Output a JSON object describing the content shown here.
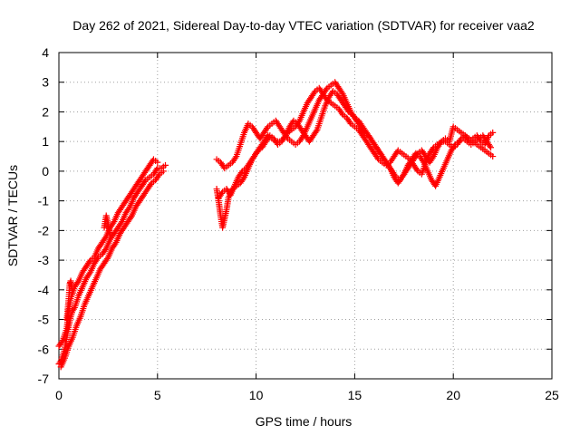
{
  "chart_data": {
    "type": "scatter",
    "title": "Day 262 of 2021, Sidereal Day-to-day VTEC variation (SDTVAR) for receiver vaa2",
    "xlabel": "GPS time / hours",
    "ylabel": "SDTVAR / TECUs",
    "xlim": [
      0,
      25
    ],
    "ylim": [
      -7,
      4
    ],
    "x_ticks": [
      0,
      5,
      10,
      15,
      20,
      25
    ],
    "y_ticks": [
      -7,
      -6,
      -5,
      -4,
      -3,
      -2,
      -1,
      0,
      1,
      2,
      3,
      4
    ],
    "grid": true,
    "marker": "plus",
    "color": "#ff0000",
    "series": [
      {
        "x": [
          0.0,
          0.1,
          0.2,
          0.3,
          0.4,
          0.5,
          0.6,
          0.7,
          0.8,
          0.9,
          1.0,
          1.2,
          1.4,
          1.6,
          1.8,
          2.0,
          2.2,
          2.4,
          2.6,
          2.8,
          3.0,
          3.2,
          3.4,
          3.6,
          3.8,
          4.0,
          4.2,
          4.4,
          4.6,
          4.8,
          5.0,
          5.2,
          5.4
        ],
        "y": [
          -6.5,
          -6.4,
          -6.2,
          -6.0,
          -5.6,
          -5.2,
          -4.9,
          -4.7,
          -4.6,
          -4.4,
          -4.2,
          -3.9,
          -3.6,
          -3.4,
          -3.1,
          -2.9,
          -2.8,
          -2.6,
          -2.3,
          -2.1,
          -1.9,
          -1.7,
          -1.4,
          -1.2,
          -0.9,
          -0.7,
          -0.5,
          -0.3,
          -0.2,
          -0.1,
          0.1,
          0.1,
          0.2
        ]
      },
      {
        "x": [
          0.0,
          0.2,
          0.4,
          0.5,
          0.6,
          0.8,
          1.0,
          1.2,
          1.4,
          1.6,
          1.8,
          2.0,
          2.2,
          2.4,
          2.6,
          2.8,
          3.0,
          3.2,
          3.4,
          3.6,
          3.8,
          4.0,
          4.2,
          4.4,
          4.6,
          4.8,
          5.0
        ],
        "y": [
          -5.9,
          -5.7,
          -5.3,
          -4.7,
          -4.3,
          -3.9,
          -3.7,
          -3.4,
          -3.2,
          -3.0,
          -2.9,
          -2.6,
          -2.4,
          -2.2,
          -1.9,
          -1.7,
          -1.4,
          -1.2,
          -1.0,
          -0.8,
          -0.6,
          -0.4,
          -0.2,
          0.0,
          0.2,
          0.4,
          0.3
        ]
      },
      {
        "x": [
          0.1,
          0.3,
          0.5,
          0.7,
          0.9,
          1.1,
          1.3,
          1.5,
          1.7,
          1.9,
          2.1,
          2.3,
          2.5,
          2.7,
          2.9,
          3.1,
          3.3,
          3.5,
          3.7,
          3.9,
          4.1,
          4.3,
          4.5,
          4.7,
          4.9,
          5.1,
          5.3
        ],
        "y": [
          -6.6,
          -6.3,
          -5.9,
          -5.6,
          -5.2,
          -4.9,
          -4.5,
          -4.2,
          -3.9,
          -3.6,
          -3.3,
          -3.1,
          -2.9,
          -2.6,
          -2.4,
          -2.1,
          -1.9,
          -1.7,
          -1.5,
          -1.2,
          -1.0,
          -0.8,
          -0.6,
          -0.4,
          -0.3,
          -0.1,
          0.0
        ]
      },
      {
        "x": [
          0.4,
          0.5,
          0.55,
          0.6,
          0.7
        ],
        "y": [
          -5.0,
          -4.3,
          -3.8,
          -3.7,
          -4.1
        ]
      },
      {
        "x": [
          2.3,
          2.4,
          2.5,
          2.6
        ],
        "y": [
          -1.9,
          -1.5,
          -1.8,
          -2.2
        ]
      },
      {
        "x": [
          8.0,
          8.1,
          8.2,
          8.3,
          8.4,
          8.5,
          8.6,
          8.8,
          9.0,
          9.2,
          9.4,
          9.6,
          9.8,
          10.0,
          10.2,
          10.4,
          10.6,
          10.8,
          11.0,
          11.2,
          11.4,
          11.6,
          11.8,
          12.0,
          12.2,
          12.4,
          12.6,
          12.8,
          13.0,
          13.2,
          13.4,
          13.6,
          13.8,
          14.0,
          14.2,
          14.4,
          14.6,
          14.8,
          15.0,
          15.2,
          15.4,
          15.6,
          15.8,
          16.0,
          16.2,
          16.4,
          16.6,
          16.8,
          17.0,
          17.2,
          17.4,
          17.6,
          17.8,
          18.0,
          18.2,
          18.4,
          18.6,
          18.8,
          19.0,
          19.2,
          19.4,
          19.6,
          19.8,
          20.0,
          20.2,
          20.4,
          20.6,
          20.8,
          21.0,
          21.2,
          21.4,
          21.6,
          21.8,
          22.0
        ],
        "y": [
          -0.6,
          -1.0,
          -1.5,
          -1.9,
          -1.6,
          -1.3,
          -0.9,
          -0.6,
          -0.5,
          -0.4,
          -0.2,
          0.1,
          0.4,
          0.6,
          0.8,
          1.0,
          1.2,
          1.1,
          1.0,
          1.0,
          1.1,
          1.3,
          1.4,
          1.5,
          1.7,
          2.0,
          2.3,
          2.5,
          2.7,
          2.8,
          2.6,
          2.4,
          2.3,
          2.2,
          2.1,
          1.9,
          1.8,
          1.6,
          1.5,
          1.4,
          1.2,
          1.0,
          0.8,
          0.6,
          0.4,
          0.3,
          0.2,
          0.3,
          0.5,
          0.7,
          0.6,
          0.5,
          0.4,
          0.2,
          0.0,
          -0.1,
          0.3,
          0.6,
          0.8,
          0.9,
          1.0,
          1.0,
          0.9,
          0.8,
          0.9,
          1.1,
          1.2,
          1.1,
          1.0,
          0.9,
          0.8,
          0.7,
          0.6,
          0.5
        ]
      },
      {
        "x": [
          8.0,
          8.2,
          8.4,
          8.6,
          8.8,
          9.0,
          9.2,
          9.4,
          9.6,
          9.8,
          10.0,
          10.2,
          10.4,
          10.6,
          10.8,
          11.0,
          11.2,
          11.4,
          11.6,
          11.8,
          12.0,
          12.2,
          12.4,
          12.6,
          12.8,
          13.0,
          13.2,
          13.4,
          13.6,
          13.8,
          14.0,
          14.2,
          14.4,
          14.6,
          14.8,
          15.0,
          15.2,
          15.4,
          15.6,
          15.8,
          16.0,
          16.2,
          16.4,
          16.6,
          16.8,
          17.0,
          17.2,
          17.4,
          17.6,
          17.8,
          18.0,
          18.2,
          18.4,
          18.6,
          18.8,
          19.0,
          19.2,
          19.4,
          19.6,
          19.8,
          20.0,
          20.2,
          20.4,
          20.6,
          20.8,
          21.0,
          21.2,
          21.4,
          21.6,
          21.8,
          22.0
        ],
        "y": [
          0.4,
          0.3,
          0.1,
          0.2,
          0.3,
          0.5,
          0.9,
          1.3,
          1.6,
          1.5,
          1.3,
          1.1,
          1.3,
          1.5,
          1.6,
          1.7,
          1.5,
          1.3,
          1.1,
          1.0,
          0.9,
          1.0,
          1.2,
          1.5,
          1.8,
          2.1,
          2.4,
          2.6,
          2.8,
          2.9,
          3.0,
          2.8,
          2.6,
          2.3,
          2.0,
          1.8,
          1.7,
          1.5,
          1.3,
          1.1,
          0.9,
          0.7,
          0.5,
          0.3,
          0.1,
          -0.2,
          -0.4,
          -0.2,
          0.0,
          0.2,
          0.4,
          0.6,
          0.7,
          0.5,
          0.3,
          0.5,
          0.8,
          1.0,
          1.1,
          1.0,
          1.5,
          1.4,
          1.3,
          1.2,
          1.0,
          1.1,
          1.2,
          1.0,
          0.9,
          1.2,
          1.3
        ]
      },
      {
        "x": [
          8.1,
          8.3,
          8.5,
          8.7,
          8.9,
          9.1,
          9.3,
          9.5,
          9.7,
          9.9,
          10.1,
          10.3,
          10.5,
          10.7,
          10.9,
          11.1,
          11.3,
          11.5,
          11.7,
          11.9,
          12.1,
          12.3,
          12.5,
          12.7,
          12.9,
          13.1,
          13.3,
          13.5,
          13.7,
          13.9,
          14.1,
          14.3,
          14.5,
          14.7,
          14.9,
          15.1,
          15.3,
          15.5,
          15.7,
          15.9,
          16.1,
          16.3,
          16.5,
          16.7,
          16.9,
          17.1,
          17.3,
          17.5,
          17.7,
          17.9,
          18.1,
          18.3,
          18.5,
          18.7,
          18.9,
          19.1,
          19.3,
          19.5,
          19.7,
          19.9,
          20.1,
          20.3,
          20.5,
          20.7,
          20.9,
          21.1,
          21.3,
          21.5,
          21.7,
          21.9
        ],
        "y": [
          -0.9,
          -0.7,
          -0.6,
          -0.8,
          -0.5,
          -0.2,
          0.0,
          0.1,
          0.3,
          0.5,
          0.7,
          0.8,
          1.0,
          1.2,
          1.1,
          0.9,
          1.0,
          1.2,
          1.5,
          1.7,
          1.6,
          1.4,
          1.2,
          1.0,
          1.2,
          1.4,
          1.8,
          2.2,
          2.5,
          2.7,
          2.6,
          2.4,
          2.2,
          2.0,
          1.9,
          1.7,
          1.5,
          1.3,
          1.2,
          1.0,
          0.8,
          0.6,
          0.4,
          0.2,
          0.0,
          -0.2,
          -0.3,
          -0.1,
          0.2,
          0.4,
          0.6,
          0.5,
          0.3,
          0.0,
          -0.3,
          -0.5,
          -0.2,
          0.1,
          0.4,
          0.7,
          0.9,
          1.0,
          1.1,
          1.0,
          0.9,
          1.0,
          1.1,
          1.2,
          1.0,
          0.8
        ]
      }
    ]
  }
}
